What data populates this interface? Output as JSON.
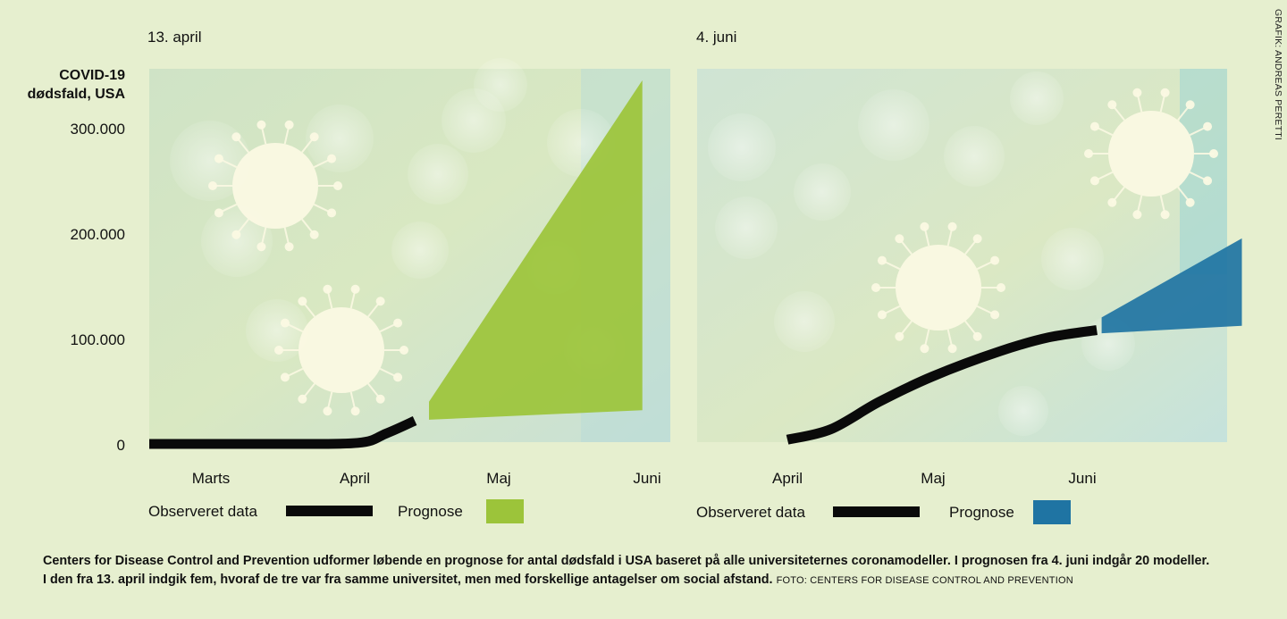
{
  "y_axis": {
    "title_line1": "COVID-19",
    "title_line2": "dødsfald, USA",
    "ticks": [
      "0",
      "100.000",
      "200.000",
      "300.000"
    ]
  },
  "panel_left": {
    "title": "13. april",
    "x_ticks": [
      "Marts",
      "April",
      "Maj",
      "Juni"
    ],
    "legend_observed": "Observeret data",
    "legend_forecast": "Prognose"
  },
  "panel_right": {
    "title": "4. juni",
    "x_ticks": [
      "April",
      "Maj",
      "Juni"
    ],
    "legend_observed": "Observeret data",
    "legend_forecast": "Prognose"
  },
  "colors": {
    "background": "#e6efcf",
    "observed": "#0a0a0a",
    "forecast_april": "#9cc43a",
    "forecast_june": "#1f74a3"
  },
  "footer": {
    "text_line1": "Centers for Disease Control and Prevention udformer løbende en prognose for antal dødsfald i USA baseret på alle universiteternes coronamodeller. I prognosen fra 4. juni indgår 20 modeller.",
    "text_line2": "I den fra 13. april indgik fem, hvoraf de tre var fra samme universitet, men med forskellige antagelser om social afstand.",
    "photo_credit": "FOTO: CENTERS FOR DISEASE CONTROL AND PREVENTION"
  },
  "side_credit": "GRAFIK: ANDREAS PERETTI",
  "chart_data": [
    {
      "type": "line",
      "title": "13. april",
      "ylabel": "COVID-19 dødsfald, USA",
      "ylim": [
        0,
        350000
      ],
      "x_categories": [
        "Marts",
        "April",
        "Maj",
        "Juni"
      ],
      "observed": {
        "x": [
          "2020-03-01",
          "2020-03-15",
          "2020-04-01",
          "2020-04-07",
          "2020-04-13"
        ],
        "y": [
          0,
          0,
          1000,
          10000,
          22000
        ]
      },
      "forecast": {
        "x": [
          "2020-04-16",
          "2020-05-31"
        ],
        "y_low": [
          23000,
          32000
        ],
        "y_high": [
          40000,
          345000
        ]
      }
    },
    {
      "type": "line",
      "title": "4. juni",
      "ylim": [
        0,
        350000
      ],
      "x_categories": [
        "April",
        "Maj",
        "Juni"
      ],
      "observed": {
        "x": [
          "2020-04-01",
          "2020-04-10",
          "2020-04-20",
          "2020-05-01",
          "2020-05-15",
          "2020-05-25",
          "2020-06-04"
        ],
        "y": [
          4000,
          14000,
          40000,
          64000,
          88000,
          101000,
          108000
        ]
      },
      "forecast": {
        "x": [
          "2020-06-05",
          "2020-07-04"
        ],
        "y_low": [
          105000,
          112000
        ],
        "y_high": [
          120000,
          195000
        ]
      }
    }
  ]
}
